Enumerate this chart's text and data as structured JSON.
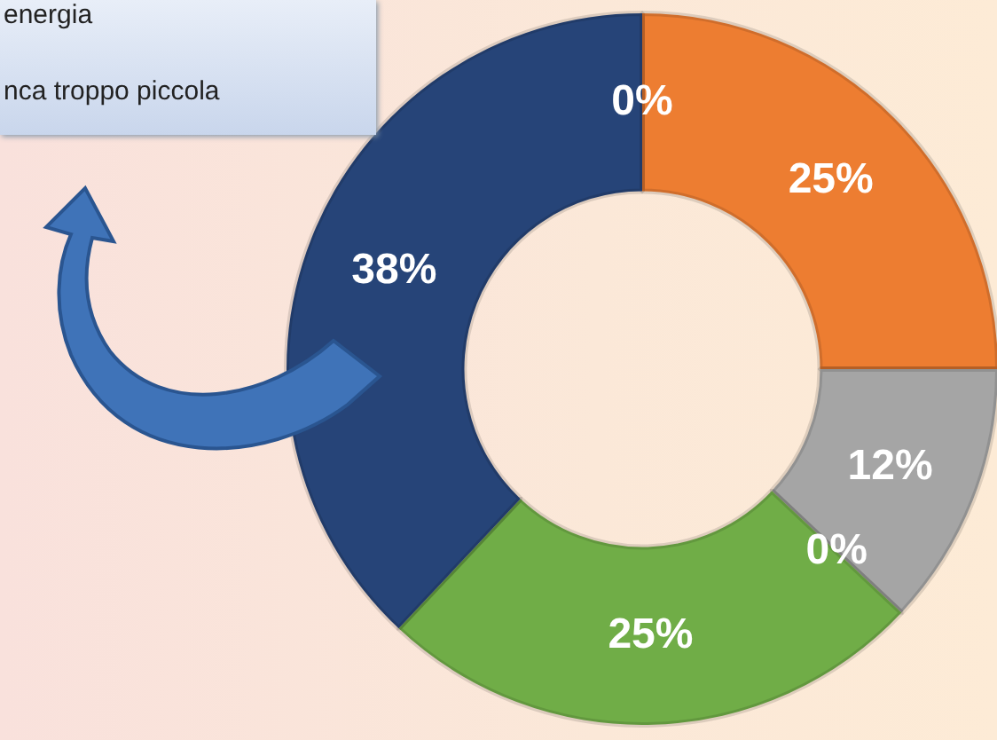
{
  "chart_data": {
    "type": "donut",
    "categories": [
      null,
      null,
      null,
      null,
      null,
      null
    ],
    "values": [
      0,
      25,
      12,
      0,
      25,
      38
    ],
    "value_labels": [
      "0%",
      "25%",
      "12%",
      "0%",
      "25%",
      "38%"
    ],
    "colors": [
      "#ffc000",
      "#ed7d31",
      "#a5a5a5",
      "#5b9bd5",
      "#70ad47",
      "#264478"
    ],
    "annotations": [
      "energia",
      "nca troppo piccola"
    ]
  }
}
